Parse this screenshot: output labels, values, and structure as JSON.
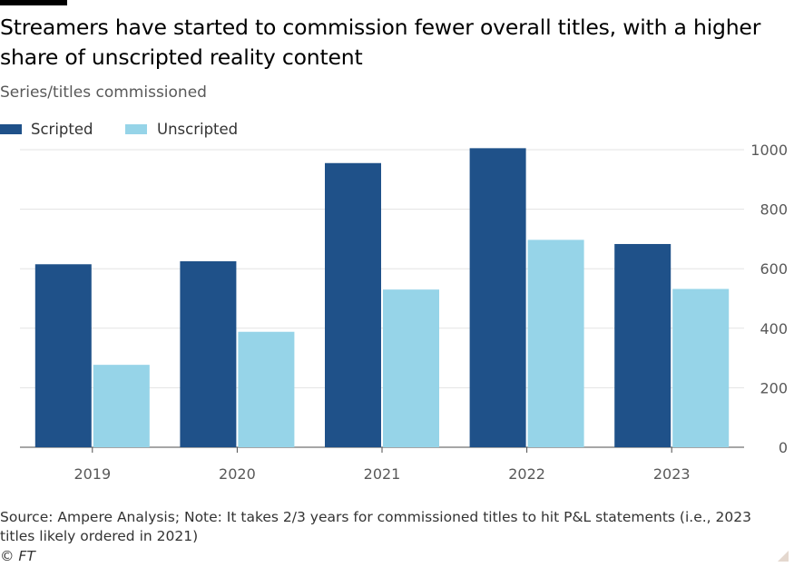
{
  "header": {
    "title": "Streamers have started to commission fewer overall titles, with a higher share of unscripted reality content",
    "subtitle": "Series/titles commissioned"
  },
  "legend": {
    "items": [
      {
        "label": "Scripted",
        "color": "#1f5189"
      },
      {
        "label": "Unscripted",
        "color": "#96d4e8"
      }
    ]
  },
  "chart_data": {
    "type": "bar",
    "title": "Streamers have started to commission fewer overall titles, with a higher share of unscripted reality content",
    "subtitle": "Series/titles commissioned",
    "xlabel": "",
    "ylabel": "",
    "categories": [
      "2019",
      "2020",
      "2021",
      "2022",
      "2023"
    ],
    "series": [
      {
        "name": "Scripted",
        "color": "#1f5189",
        "values": [
          615,
          625,
          955,
          1005,
          683
        ]
      },
      {
        "name": "Unscripted",
        "color": "#96d4e8",
        "values": [
          277,
          388,
          530,
          697,
          532
        ]
      }
    ],
    "ylim": [
      0,
      1000
    ],
    "yticks": [
      0,
      200,
      400,
      600,
      800,
      1000
    ],
    "y_axis_position": "right",
    "grid": true,
    "legend_position": "top-left"
  },
  "footer": {
    "source": "Source: Ampere Analysis; Note: It takes 2/3 years for commissioned titles to hit P&L statements (i.e., 2023 titles likely ordered in 2021)",
    "credit": "© FT"
  }
}
